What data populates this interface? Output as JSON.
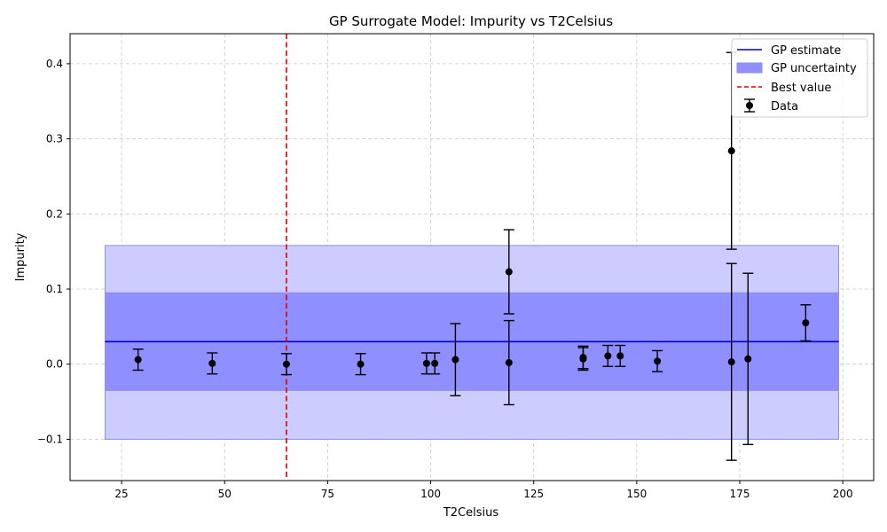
{
  "chart_data": {
    "type": "scatter",
    "title": "GP Surrogate Model: Impurity vs T2Celsius",
    "xlabel": "T2Celsius",
    "ylabel": "Impurity",
    "xlim": [
      12.5,
      207.5
    ],
    "ylim": [
      -0.155,
      0.44
    ],
    "xticks": [
      25,
      50,
      75,
      100,
      125,
      150,
      175,
      200
    ],
    "xtick_labels": [
      "25",
      "50",
      "75",
      "100",
      "125",
      "150",
      "175",
      "200"
    ],
    "yticks": [
      -0.1,
      0.0,
      0.1,
      0.2,
      0.3,
      0.4
    ],
    "ytick_labels": [
      "−0.1",
      "0.0",
      "0.1",
      "0.2",
      "0.3",
      "0.4"
    ],
    "grid": true,
    "legend_position": "top-right",
    "legend": [
      "GP estimate",
      "GP uncertainty",
      "Best value",
      "Data"
    ],
    "gp_estimate": {
      "x": [
        21,
        199
      ],
      "y": 0.03
    },
    "gp_uncertainty": [
      {
        "x": [
          21,
          199
        ],
        "y": [
          -0.035,
          0.095
        ]
      },
      {
        "x": [
          21,
          199
        ],
        "y": [
          -0.1,
          0.158
        ]
      }
    ],
    "best_value": 65,
    "data": {
      "x": [
        29,
        47,
        65,
        83,
        99,
        101,
        106,
        119,
        119,
        137,
        137,
        143,
        146,
        155,
        173,
        173,
        177,
        191
      ],
      "y": [
        0.006,
        0.001,
        0.0,
        0.0,
        0.001,
        0.001,
        0.006,
        0.123,
        0.002,
        0.009,
        0.007,
        0.011,
        0.011,
        0.004,
        0.284,
        0.003,
        0.007,
        0.055
      ],
      "err": [
        0.014,
        0.014,
        0.014,
        0.014,
        0.014,
        0.014,
        0.048,
        0.056,
        0.056,
        0.015,
        0.015,
        0.014,
        0.014,
        0.014,
        0.131,
        0.131,
        0.114,
        0.024
      ]
    },
    "colors": {
      "gp_line": "#0000cc",
      "band_inner": "#8f8fff",
      "band_outer": "#ccccff",
      "band_edge": "#8f8fdf",
      "best": "#e00000",
      "data": "#000000",
      "grid": "#c8c8c8"
    }
  }
}
